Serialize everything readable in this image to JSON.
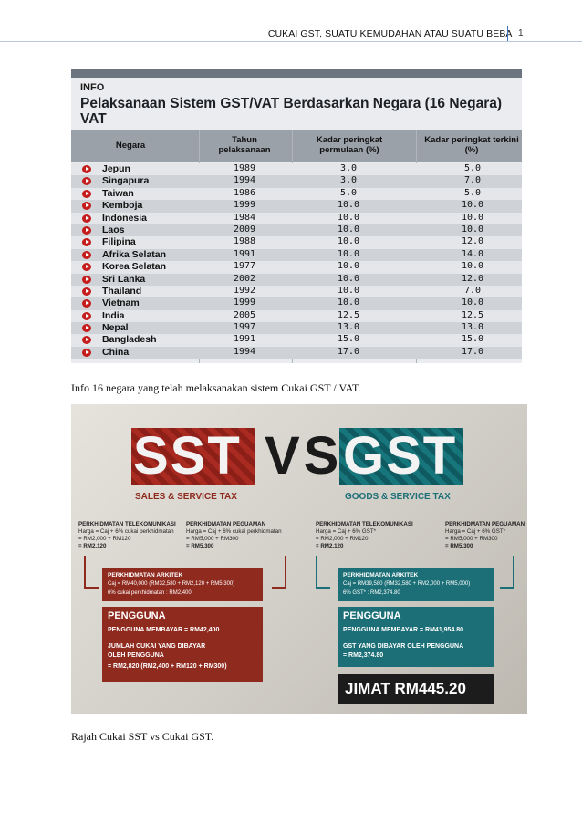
{
  "header": {
    "title": "CUKAI GST, SUATU KEMUDAHAN ATAU SUATU BEBANAN",
    "page_number": "1"
  },
  "info_image": {
    "tag": "INFO",
    "title": "Pelaksanaan Sistem GST/VAT Berdasarkan Negara (16 Negara) VAT",
    "columns": [
      "Negara",
      "Tahun pelaksanaan",
      "Kadar peringkat permulaan (%)",
      "Kadar peringkat terkini (%)"
    ],
    "rows": [
      {
        "country": "Jepun",
        "year": "1989",
        "initial": "3.0",
        "current": "5.0"
      },
      {
        "country": "Singapura",
        "year": "1994",
        "initial": "3.0",
        "current": "7.0"
      },
      {
        "country": "Taiwan",
        "year": "1986",
        "initial": "5.0",
        "current": "5.0"
      },
      {
        "country": "Kemboja",
        "year": "1999",
        "initial": "10.0",
        "current": "10.0"
      },
      {
        "country": "Indonesia",
        "year": "1984",
        "initial": "10.0",
        "current": "10.0"
      },
      {
        "country": "Laos",
        "year": "2009",
        "initial": "10.0",
        "current": "10.0"
      },
      {
        "country": "Filipina",
        "year": "1988",
        "initial": "10.0",
        "current": "12.0"
      },
      {
        "country": "Afrika Selatan",
        "year": "1991",
        "initial": "10.0",
        "current": "14.0"
      },
      {
        "country": "Korea Selatan",
        "year": "1977",
        "initial": "10.0",
        "current": "10.0"
      },
      {
        "country": "Sri Lanka",
        "year": "2002",
        "initial": "10.0",
        "current": "12.0"
      },
      {
        "country": "Thailand",
        "year": "1992",
        "initial": "10.0",
        "current": "7.0"
      },
      {
        "country": "Vietnam",
        "year": "1999",
        "initial": "10.0",
        "current": "10.0"
      },
      {
        "country": "India",
        "year": "2005",
        "initial": "12.5",
        "current": "12.5"
      },
      {
        "country": "Nepal",
        "year": "1997",
        "initial": "13.0",
        "current": "13.0"
      },
      {
        "country": "Bangladesh",
        "year": "1991",
        "initial": "15.0",
        "current": "15.0"
      },
      {
        "country": "China",
        "year": "1994",
        "initial": "17.0",
        "current": "17.0"
      }
    ],
    "bullet_color": "#c51c1c"
  },
  "caption1": "Info 16 negara yang telah melaksanakan sistem Cukai GST / VAT.",
  "sst_gst": {
    "sst": "SST",
    "vs": "VS",
    "gst": "GST",
    "sst_sub": "SALES & SERVICE TAX",
    "gst_sub": "GOODS & SERVICE TAX",
    "sst_telco_title": "PERKHIDMATAN TELEKOMUNIKASI",
    "sst_telco_l1": "Harga = Caj + 6% cukai perkhidmatan",
    "sst_telco_l2": "= RM2,000 + RM120",
    "sst_telco_l3": "= RM2,120",
    "sst_legal_title": "PERKHIDMATAN PEGUAMAN",
    "sst_legal_l1": "Harga = Caj + 6% cukai perkhidmatan",
    "sst_legal_l2": "= RM5,000 + RM300",
    "sst_legal_l3": "= RM5,300",
    "gst_telco_title": "PERKHIDMATAN TELEKOMUNIKASI",
    "gst_telco_l1": "Harga = Caj + 6% GST*",
    "gst_telco_l2": "= RM2,000 + RM120",
    "gst_telco_l3": "= RM2,120",
    "gst_legal_title": "PERKHIDMATAN PEGUAMAN",
    "gst_legal_l1": "Harga = Caj + 6% GST*",
    "gst_legal_l2": "= RM5,000 + RM300",
    "gst_legal_l3": "= RM5,300",
    "sst_arch_title": "PERKHIDMATAN ARKITEK",
    "sst_arch_l1": "Caj = RM40,000 (RM32,580 + RM2,120 + RM5,300)",
    "sst_arch_l2": "6% cukai perkhidmatan : RM2,400",
    "gst_arch_title": "PERKHIDMATAN ARKITEK",
    "gst_arch_l1": "Caj = RM39,580 (RM32,580 + RM2,000 + RM5,000)",
    "gst_arch_l2": "6% GST* : RM2,374.80",
    "sst_user_title": "PENGGUNA",
    "sst_user_l1": "PENGGUNA MEMBAYAR = RM42,400",
    "sst_user_l2": "JUMLAH CUKAI YANG DIBAYAR",
    "sst_user_l3": "OLEH PENGGUNA",
    "sst_user_l4": "= RM2,820 (RM2,400 + RM120 + RM300)",
    "gst_user_title": "PENGGUNA",
    "gst_user_l1": "PENGGUNA MEMBAYAR = RM41,954.80",
    "gst_user_l2": "GST YANG DIBAYAR OLEH PENGGUNA",
    "gst_user_l3": "= RM2,374.80",
    "saving": "JIMAT RM445.20",
    "sst_color": "#8f2a1f",
    "gst_color": "#1c6f76"
  },
  "caption2": "Rajah Cukai SST vs Cukai GST."
}
